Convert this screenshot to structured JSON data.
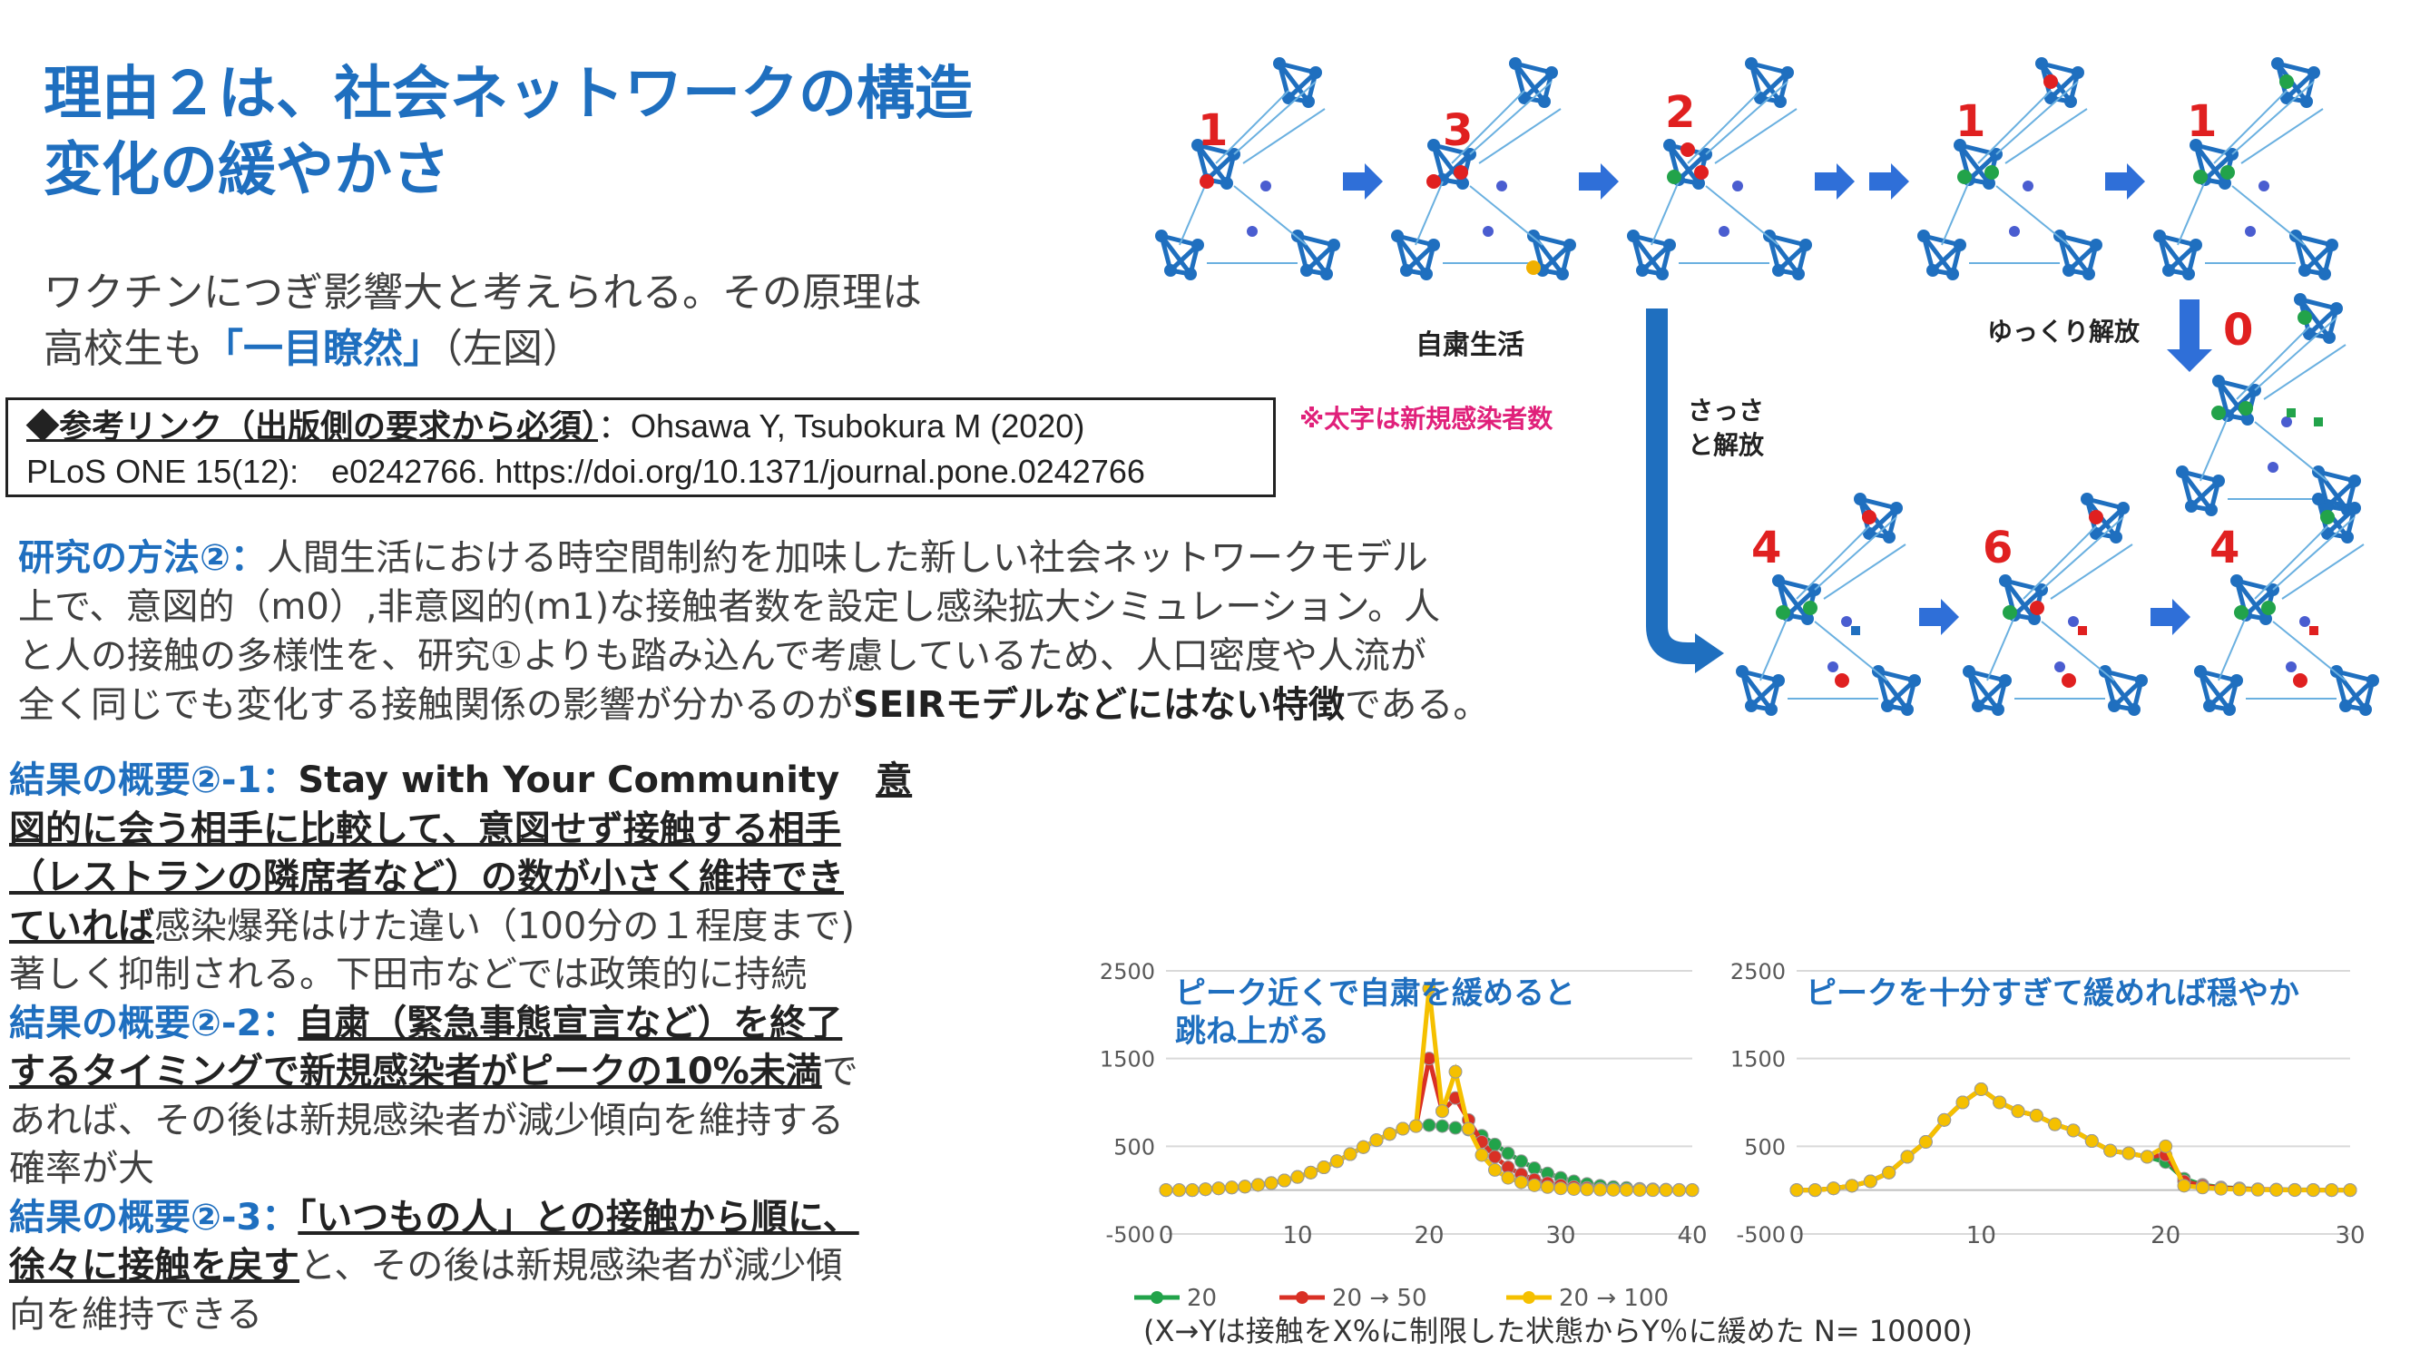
{
  "title": {
    "line1": "理由２は、社会ネットワークの構造",
    "line2": "変化の緩やかさ"
  },
  "intro": {
    "line1": "ワクチンにつぎ影響大と考えられる。その原理は",
    "line2_pre": "高校生も",
    "line2_hl": "「一目瞭然」",
    "line2_post": "（左図）"
  },
  "reference": {
    "label": "◆参考リンク（出版側の要求から必須）",
    "line1_rest": "：Ohsawa Y, Tsubokura M (2020)",
    "line2": "PLoS ONE 15(12):　e0242766. https://doi.org/10.1371/journal.pone.0242766"
  },
  "network_figure": {
    "red_note": "※太字は新規感染者数",
    "label_self_restraint": "自粛生活",
    "label_slow_release": "ゆっくり解放",
    "label_quick_release_1": "さっさ",
    "label_quick_release_2": "と解放",
    "top_numbers": [
      "1",
      "3",
      "2",
      "1",
      "1"
    ],
    "slow_number": "0",
    "bottom_numbers": [
      "4",
      "6",
      "4"
    ]
  },
  "method": {
    "label": "研究の方法②：",
    "line1": "人間生活における時空間制約を加味した新しい社会ネットワークモデル",
    "line2": "上で、意図的（m0）,非意図的(m1)な接触者数を設定し感染拡大シミュレーション。人",
    "line3": "と人の接触の多様性を、研究①よりも踏み込んで考慮しているため、人口密度や人流が",
    "line4_pre": "全く同じでも変化する接触関係の影響が分かるのが",
    "line4_bold": "SEIRモデルなどにはない特徴",
    "line4_post": "である。"
  },
  "results": {
    "r1_label": "結果の概要②-1：",
    "r1_title": "Stay with Your Community　",
    "r1_u1": "意",
    "r1_u2": "図的に会う相手に比較して、意図せず接触する相手",
    "r1_u3": "（レストランの隣席者など）の数が小さく維持でき",
    "r1_u4": "ていれば",
    "r1_t4": "感染爆発はけた違い（100分の１程度まで)",
    "r1_t5": "著しく抑制される。下田市などでは政策的に持続",
    "r2_label": "結果の概要②-2：",
    "r2_u1": "自粛（緊急事態宣言など）を終了",
    "r2_u2": "するタイミングで新規感染者がピークの10%未満",
    "r2_t2": "で",
    "r2_t3": "あれば、その後は新規感染者が減少傾向を維持する",
    "r2_t4": "確率が大",
    "r3_label": "結果の概要②-3：",
    "r3_u1": "「いつもの人」との接触から順に、",
    "r3_u2": "徐々に接触を戻す",
    "r3_t2": "と、その後は新規感染者が減少傾",
    "r3_t3": "向を維持できる"
  },
  "colors": {
    "accent": "#1f6fbf",
    "green": "#22a34a",
    "red": "#d93025",
    "yellow": "#f5c000",
    "note_pink": "#e0207a"
  },
  "chart_data": [
    {
      "type": "line",
      "title": "ピーク近くで自粛を緩めると跳ね上がる",
      "title_line1": "ピーク近くで自粛を緩めると",
      "title_line2": "跳ね上がる",
      "xlim": [
        0,
        40
      ],
      "ylim": [
        -500,
        2500
      ],
      "xticks": [
        0,
        10,
        20,
        30,
        40
      ],
      "yticks": [
        -500,
        500,
        1500,
        2500
      ],
      "x": [
        0,
        1,
        2,
        3,
        4,
        5,
        6,
        7,
        8,
        9,
        10,
        11,
        12,
        13,
        14,
        15,
        16,
        17,
        18,
        19,
        20,
        21,
        22,
        23,
        24,
        25,
        26,
        27,
        28,
        29,
        30,
        31,
        32,
        33,
        34,
        35,
        36,
        37,
        38,
        39,
        40
      ],
      "series": [
        {
          "name": "20",
          "color": "#22a34a",
          "values": [
            0,
            0,
            0,
            10,
            20,
            30,
            40,
            60,
            80,
            110,
            150,
            200,
            260,
            330,
            410,
            490,
            570,
            640,
            700,
            730,
            740,
            730,
            710,
            690,
            620,
            520,
            420,
            330,
            250,
            190,
            140,
            100,
            70,
            50,
            35,
            25,
            15,
            10,
            5,
            3,
            0
          ]
        },
        {
          "name": "20 → 50",
          "color": "#d93025",
          "values": [
            0,
            0,
            0,
            10,
            20,
            30,
            40,
            60,
            80,
            110,
            150,
            200,
            260,
            330,
            410,
            490,
            570,
            640,
            700,
            730,
            1500,
            900,
            1050,
            800,
            550,
            380,
            260,
            180,
            120,
            80,
            55,
            35,
            25,
            15,
            10,
            6,
            4,
            2,
            1,
            0,
            0
          ]
        },
        {
          "name": "20 → 100",
          "color": "#f5c000",
          "values": [
            0,
            0,
            0,
            10,
            20,
            30,
            40,
            60,
            80,
            110,
            150,
            200,
            260,
            330,
            410,
            490,
            570,
            640,
            700,
            730,
            2300,
            900,
            1350,
            700,
            400,
            230,
            140,
            90,
            55,
            35,
            20,
            12,
            8,
            5,
            3,
            2,
            1,
            0,
            0,
            0,
            0
          ]
        }
      ]
    },
    {
      "type": "line",
      "title": "ピークを十分すぎて緩めれば穏やか",
      "xlim": [
        0,
        30
      ],
      "ylim": [
        -500,
        2500
      ],
      "xticks": [
        0,
        10,
        20,
        30
      ],
      "yticks": [
        -500,
        500,
        1500,
        2500
      ],
      "x": [
        0,
        1,
        2,
        3,
        4,
        5,
        6,
        7,
        8,
        9,
        10,
        11,
        12,
        13,
        14,
        15,
        16,
        17,
        18,
        19,
        20,
        21,
        22,
        23,
        24,
        25,
        26,
        27,
        28,
        29,
        30
      ],
      "series": [
        {
          "name": "20",
          "color": "#22a34a",
          "values": [
            0,
            0,
            20,
            50,
            100,
            200,
            380,
            550,
            800,
            1000,
            1150,
            1000,
            900,
            850,
            750,
            680,
            560,
            450,
            420,
            380,
            320,
            130,
            60,
            30,
            20,
            10,
            5,
            3,
            2,
            1,
            0
          ]
        },
        {
          "name": "20 → 50",
          "color": "#d93025",
          "values": [
            0,
            0,
            20,
            50,
            100,
            200,
            380,
            550,
            800,
            1000,
            1150,
            1000,
            900,
            850,
            750,
            680,
            560,
            450,
            420,
            380,
            400,
            100,
            50,
            25,
            15,
            8,
            4,
            2,
            1,
            0,
            0
          ]
        },
        {
          "name": "20 → 100",
          "color": "#f5c000",
          "values": [
            0,
            0,
            20,
            50,
            100,
            200,
            380,
            550,
            800,
            1000,
            1150,
            1000,
            900,
            850,
            750,
            680,
            560,
            450,
            420,
            380,
            500,
            50,
            30,
            15,
            8,
            4,
            2,
            1,
            0,
            0,
            0
          ]
        }
      ]
    }
  ],
  "chart_caption": "(X→Yは接触をX%に制限した状態からY％に緩めた N= 10000)"
}
